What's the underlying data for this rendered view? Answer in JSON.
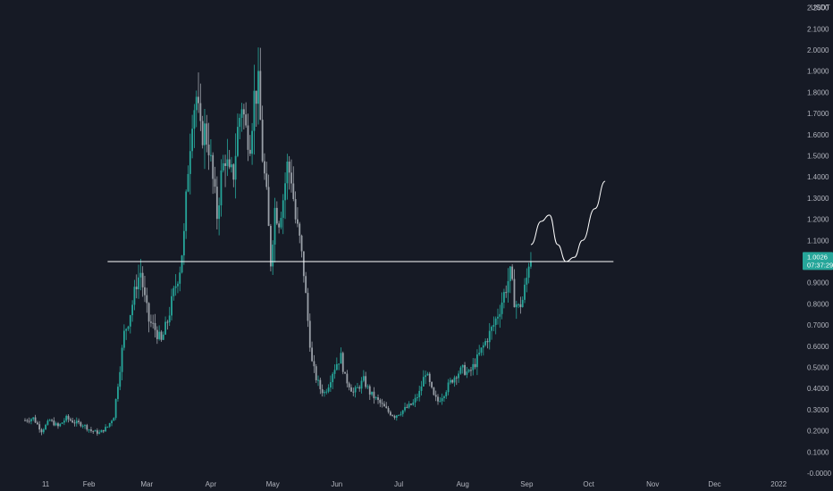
{
  "chart_data": {
    "type": "candlestick",
    "currency": "USDT",
    "price_badge": {
      "price": "1.0026",
      "countdown": "07:37:29",
      "color": "#26a69a"
    },
    "colors": {
      "up": "#26a69a",
      "down": "#9aa0a8",
      "background": "#161a25",
      "axis_text": "#b2b5be",
      "line": "#ffffff"
    },
    "ylim": [
      0,
      2.2
    ],
    "y_ticks": [
      "-0.0000",
      "0.1000",
      "0.2000",
      "0.3000",
      "0.4000",
      "0.5000",
      "0.6000",
      "0.7000",
      "0.8000",
      "0.9000",
      "1.0000",
      "1.1000",
      "1.2000",
      "1.3000",
      "1.4000",
      "1.5000",
      "1.6000",
      "1.7000",
      "1.8000",
      "1.9000",
      "2.0000",
      "2.1000",
      "2.2000"
    ],
    "y_tick_values": [
      0,
      0.1,
      0.2,
      0.3,
      0.4,
      0.5,
      0.6,
      0.7,
      0.8,
      0.9,
      1.0,
      1.1,
      1.2,
      1.3,
      1.4,
      1.5,
      1.6,
      1.7,
      1.8,
      1.9,
      2.0,
      2.1,
      2.2
    ],
    "x_ticks": [
      {
        "label": "11",
        "day": 10
      },
      {
        "label": "Feb",
        "day": 31
      },
      {
        "label": "Mar",
        "day": 59
      },
      {
        "label": "Apr",
        "day": 90
      },
      {
        "label": "May",
        "day": 120
      },
      {
        "label": "Jun",
        "day": 151
      },
      {
        "label": "Jul",
        "day": 181
      },
      {
        "label": "Aug",
        "day": 212
      },
      {
        "label": "Sep",
        "day": 243
      },
      {
        "label": "Oct",
        "day": 273
      },
      {
        "label": "Nov",
        "day": 304
      },
      {
        "label": "Dec",
        "day": 334
      },
      {
        "label": "2022",
        "day": 365
      }
    ],
    "xlim": [
      0,
      386
    ],
    "price_series": [
      [
        0,
        0.25
      ],
      [
        4,
        0.26
      ],
      [
        8,
        0.2
      ],
      [
        12,
        0.25
      ],
      [
        16,
        0.22
      ],
      [
        20,
        0.26
      ],
      [
        24,
        0.24
      ],
      [
        28,
        0.23
      ],
      [
        32,
        0.2
      ],
      [
        36,
        0.19
      ],
      [
        40,
        0.22
      ],
      [
        43,
        0.27
      ],
      [
        46,
        0.5
      ],
      [
        48,
        0.66
      ],
      [
        50,
        0.72
      ],
      [
        52,
        0.8
      ],
      [
        54,
        0.9
      ],
      [
        56,
        0.95
      ],
      [
        58,
        0.82
      ],
      [
        60,
        0.72
      ],
      [
        63,
        0.68
      ],
      [
        66,
        0.62
      ],
      [
        69,
        0.72
      ],
      [
        72,
        0.85
      ],
      [
        75,
        0.97
      ],
      [
        77,
        1.12
      ],
      [
        79,
        1.45
      ],
      [
        81,
        1.7
      ],
      [
        83,
        1.78
      ],
      [
        85,
        1.6
      ],
      [
        87,
        1.62
      ],
      [
        89,
        1.55
      ],
      [
        91,
        1.38
      ],
      [
        93,
        1.22
      ],
      [
        95,
        1.4
      ],
      [
        97,
        1.5
      ],
      [
        99,
        1.4
      ],
      [
        101,
        1.42
      ],
      [
        103,
        1.62
      ],
      [
        105,
        1.75
      ],
      [
        107,
        1.62
      ],
      [
        109,
        1.58
      ],
      [
        111,
        1.78
      ],
      [
        113,
        1.82
      ],
      [
        115,
        1.5
      ],
      [
        117,
        1.3
      ],
      [
        119,
        1.0
      ],
      [
        121,
        1.25
      ],
      [
        123,
        1.2
      ],
      [
        125,
        1.3
      ],
      [
        127,
        1.45
      ],
      [
        129,
        1.4
      ],
      [
        131,
        1.2
      ],
      [
        133,
        1.1
      ],
      [
        135,
        0.95
      ],
      [
        137,
        0.72
      ],
      [
        139,
        0.52
      ],
      [
        141,
        0.45
      ],
      [
        143,
        0.4
      ],
      [
        145,
        0.38
      ],
      [
        147,
        0.42
      ],
      [
        149,
        0.48
      ],
      [
        151,
        0.52
      ],
      [
        153,
        0.55
      ],
      [
        155,
        0.45
      ],
      [
        157,
        0.42
      ],
      [
        159,
        0.38
      ],
      [
        161,
        0.4
      ],
      [
        164,
        0.44
      ],
      [
        167,
        0.38
      ],
      [
        170,
        0.35
      ],
      [
        173,
        0.32
      ],
      [
        176,
        0.29
      ],
      [
        179,
        0.27
      ],
      [
        182,
        0.29
      ],
      [
        185,
        0.31
      ],
      [
        188,
        0.33
      ],
      [
        191,
        0.38
      ],
      [
        194,
        0.48
      ],
      [
        196,
        0.42
      ],
      [
        198,
        0.36
      ],
      [
        200,
        0.34
      ],
      [
        203,
        0.38
      ],
      [
        206,
        0.43
      ],
      [
        209,
        0.47
      ],
      [
        212,
        0.49
      ],
      [
        215,
        0.47
      ],
      [
        218,
        0.52
      ],
      [
        221,
        0.58
      ],
      [
        224,
        0.64
      ],
      [
        227,
        0.7
      ],
      [
        230,
        0.78
      ],
      [
        233,
        0.88
      ],
      [
        235,
        0.94
      ],
      [
        237,
        0.82
      ],
      [
        239,
        0.78
      ],
      [
        241,
        0.82
      ],
      [
        243,
        0.92
      ],
      [
        244,
        1.0
      ],
      [
        245,
        1.0
      ]
    ],
    "horizontal_level": 1.0,
    "level_range_days": [
      40,
      285
    ],
    "projection_curve": [
      [
        245,
        1.08
      ],
      [
        250,
        1.19
      ],
      [
        254,
        1.22
      ],
      [
        258,
        1.08
      ],
      [
        262,
        1.0
      ],
      [
        266,
        1.02
      ],
      [
        270,
        1.1
      ],
      [
        276,
        1.25
      ],
      [
        281,
        1.38
      ]
    ]
  }
}
